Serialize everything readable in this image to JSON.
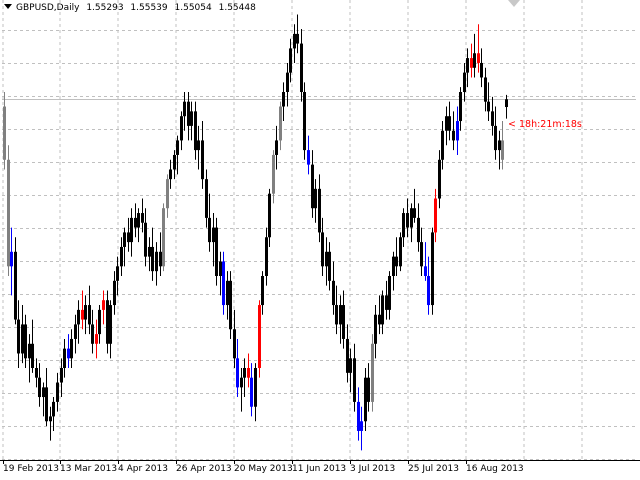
{
  "header": {
    "symbol_period": "GBPUSD,Daily",
    "open": "1.55293",
    "high": "1.55539",
    "low": "1.55054",
    "close": "1.55448"
  },
  "timer": {
    "text": "< 18h:21m:18s",
    "color": "#ff0000"
  },
  "colors": {
    "background": "#ffffff",
    "grid": "#c0c0c0",
    "bear_candle": "#000000",
    "bull_candle": "#000000",
    "neutral_candle": "#808080",
    "highlight_up": "#ff0000",
    "highlight_down": "#0000ff",
    "price_line": "#c0c0c0"
  },
  "x_axis": {
    "labels": [
      "19 Feb 2013",
      "13 Mar 2013",
      "4 Apr 2013",
      "26 Apr 2013",
      "20 May 2013",
      "11 Jun 2013",
      "3 Jul 2013",
      "25 Jul 2013",
      "16 Aug 2013"
    ]
  },
  "chart_data": {
    "type": "candlestick",
    "title": "GBPUSD,Daily",
    "current_close": 1.55448,
    "ylim": [
      1.48,
      1.575
    ],
    "candles": [
      {
        "o": 1.553,
        "h": 1.556,
        "l": 1.54,
        "c": 1.542,
        "k": "g"
      },
      {
        "o": 1.542,
        "h": 1.545,
        "l": 1.518,
        "c": 1.52,
        "k": "g"
      },
      {
        "o": 1.52,
        "h": 1.528,
        "l": 1.514,
        "c": 1.523,
        "k": "b"
      },
      {
        "o": 1.523,
        "h": 1.526,
        "l": 1.508,
        "c": 1.509,
        "k": "k"
      },
      {
        "o": 1.509,
        "h": 1.513,
        "l": 1.499,
        "c": 1.502,
        "k": "k"
      },
      {
        "o": 1.502,
        "h": 1.512,
        "l": 1.5,
        "c": 1.508,
        "k": "k"
      },
      {
        "o": 1.508,
        "h": 1.51,
        "l": 1.499,
        "c": 1.501,
        "k": "k"
      },
      {
        "o": 1.501,
        "h": 1.506,
        "l": 1.496,
        "c": 1.504,
        "k": "k"
      },
      {
        "o": 1.504,
        "h": 1.509,
        "l": 1.498,
        "c": 1.499,
        "k": "k"
      },
      {
        "o": 1.499,
        "h": 1.501,
        "l": 1.495,
        "c": 1.497,
        "k": "k"
      },
      {
        "o": 1.497,
        "h": 1.5,
        "l": 1.491,
        "c": 1.493,
        "k": "k"
      },
      {
        "o": 1.493,
        "h": 1.496,
        "l": 1.489,
        "c": 1.495,
        "k": "k"
      },
      {
        "o": 1.495,
        "h": 1.499,
        "l": 1.487,
        "c": 1.488,
        "k": "k"
      },
      {
        "o": 1.488,
        "h": 1.491,
        "l": 1.484,
        "c": 1.489,
        "k": "k"
      },
      {
        "o": 1.489,
        "h": 1.493,
        "l": 1.486,
        "c": 1.492,
        "k": "k"
      },
      {
        "o": 1.492,
        "h": 1.498,
        "l": 1.49,
        "c": 1.496,
        "k": "k"
      },
      {
        "o": 1.496,
        "h": 1.501,
        "l": 1.493,
        "c": 1.499,
        "k": "k"
      },
      {
        "o": 1.499,
        "h": 1.505,
        "l": 1.497,
        "c": 1.503,
        "k": "k"
      },
      {
        "o": 1.503,
        "h": 1.506,
        "l": 1.499,
        "c": 1.501,
        "k": "b"
      },
      {
        "o": 1.501,
        "h": 1.507,
        "l": 1.499,
        "c": 1.505,
        "k": "k"
      },
      {
        "o": 1.505,
        "h": 1.51,
        "l": 1.502,
        "c": 1.508,
        "k": "k"
      },
      {
        "o": 1.508,
        "h": 1.513,
        "l": 1.504,
        "c": 1.511,
        "k": "k"
      },
      {
        "o": 1.511,
        "h": 1.515,
        "l": 1.507,
        "c": 1.509,
        "k": "r"
      },
      {
        "o": 1.509,
        "h": 1.514,
        "l": 1.506,
        "c": 1.512,
        "k": "k"
      },
      {
        "o": 1.512,
        "h": 1.516,
        "l": 1.506,
        "c": 1.508,
        "k": "k"
      },
      {
        "o": 1.508,
        "h": 1.511,
        "l": 1.502,
        "c": 1.504,
        "k": "k"
      },
      {
        "o": 1.504,
        "h": 1.509,
        "l": 1.501,
        "c": 1.506,
        "k": "r"
      },
      {
        "o": 1.506,
        "h": 1.512,
        "l": 1.504,
        "c": 1.511,
        "k": "k"
      },
      {
        "o": 1.511,
        "h": 1.515,
        "l": 1.508,
        "c": 1.513,
        "k": "r"
      },
      {
        "o": 1.513,
        "h": 1.515,
        "l": 1.502,
        "c": 1.504,
        "k": "k"
      },
      {
        "o": 1.504,
        "h": 1.513,
        "l": 1.501,
        "c": 1.512,
        "k": "k"
      },
      {
        "o": 1.512,
        "h": 1.519,
        "l": 1.51,
        "c": 1.517,
        "k": "k"
      },
      {
        "o": 1.517,
        "h": 1.522,
        "l": 1.514,
        "c": 1.52,
        "k": "k"
      },
      {
        "o": 1.52,
        "h": 1.526,
        "l": 1.518,
        "c": 1.524,
        "k": "k"
      },
      {
        "o": 1.524,
        "h": 1.528,
        "l": 1.52,
        "c": 1.527,
        "k": "k"
      },
      {
        "o": 1.527,
        "h": 1.53,
        "l": 1.523,
        "c": 1.525,
        "k": "k"
      },
      {
        "o": 1.525,
        "h": 1.532,
        "l": 1.522,
        "c": 1.53,
        "k": "k"
      },
      {
        "o": 1.53,
        "h": 1.533,
        "l": 1.526,
        "c": 1.528,
        "k": "k"
      },
      {
        "o": 1.528,
        "h": 1.532,
        "l": 1.525,
        "c": 1.531,
        "k": "k"
      },
      {
        "o": 1.531,
        "h": 1.534,
        "l": 1.527,
        "c": 1.529,
        "k": "k"
      },
      {
        "o": 1.529,
        "h": 1.532,
        "l": 1.52,
        "c": 1.522,
        "k": "k"
      },
      {
        "o": 1.522,
        "h": 1.526,
        "l": 1.519,
        "c": 1.524,
        "k": "k"
      },
      {
        "o": 1.524,
        "h": 1.528,
        "l": 1.517,
        "c": 1.519,
        "k": "k"
      },
      {
        "o": 1.519,
        "h": 1.525,
        "l": 1.516,
        "c": 1.523,
        "k": "k"
      },
      {
        "o": 1.523,
        "h": 1.527,
        "l": 1.518,
        "c": 1.52,
        "k": "k"
      },
      {
        "o": 1.52,
        "h": 1.533,
        "l": 1.519,
        "c": 1.532,
        "k": "g"
      },
      {
        "o": 1.532,
        "h": 1.539,
        "l": 1.53,
        "c": 1.538,
        "k": "g"
      },
      {
        "o": 1.538,
        "h": 1.542,
        "l": 1.536,
        "c": 1.54,
        "k": "k"
      },
      {
        "o": 1.54,
        "h": 1.544,
        "l": 1.538,
        "c": 1.543,
        "k": "k"
      },
      {
        "o": 1.543,
        "h": 1.547,
        "l": 1.539,
        "c": 1.546,
        "k": "k"
      },
      {
        "o": 1.546,
        "h": 1.552,
        "l": 1.544,
        "c": 1.551,
        "k": "k"
      },
      {
        "o": 1.551,
        "h": 1.556,
        "l": 1.548,
        "c": 1.554,
        "k": "k"
      },
      {
        "o": 1.554,
        "h": 1.556,
        "l": 1.546,
        "c": 1.549,
        "k": "k"
      },
      {
        "o": 1.549,
        "h": 1.554,
        "l": 1.546,
        "c": 1.552,
        "k": "k"
      },
      {
        "o": 1.552,
        "h": 1.554,
        "l": 1.542,
        "c": 1.544,
        "k": "k"
      },
      {
        "o": 1.544,
        "h": 1.549,
        "l": 1.54,
        "c": 1.546,
        "k": "k"
      },
      {
        "o": 1.546,
        "h": 1.55,
        "l": 1.536,
        "c": 1.538,
        "k": "k"
      },
      {
        "o": 1.538,
        "h": 1.54,
        "l": 1.528,
        "c": 1.53,
        "k": "k"
      },
      {
        "o": 1.53,
        "h": 1.535,
        "l": 1.523,
        "c": 1.525,
        "k": "k"
      },
      {
        "o": 1.525,
        "h": 1.531,
        "l": 1.52,
        "c": 1.528,
        "k": "k"
      },
      {
        "o": 1.528,
        "h": 1.53,
        "l": 1.516,
        "c": 1.518,
        "k": "k"
      },
      {
        "o": 1.518,
        "h": 1.523,
        "l": 1.514,
        "c": 1.521,
        "k": "k"
      },
      {
        "o": 1.521,
        "h": 1.523,
        "l": 1.51,
        "c": 1.512,
        "k": "b"
      },
      {
        "o": 1.512,
        "h": 1.519,
        "l": 1.509,
        "c": 1.517,
        "k": "k"
      },
      {
        "o": 1.517,
        "h": 1.519,
        "l": 1.505,
        "c": 1.507,
        "k": "k"
      },
      {
        "o": 1.507,
        "h": 1.511,
        "l": 1.499,
        "c": 1.501,
        "k": "k"
      },
      {
        "o": 1.501,
        "h": 1.505,
        "l": 1.493,
        "c": 1.495,
        "k": "b"
      },
      {
        "o": 1.495,
        "h": 1.499,
        "l": 1.49,
        "c": 1.497,
        "k": "k"
      },
      {
        "o": 1.497,
        "h": 1.501,
        "l": 1.493,
        "c": 1.499,
        "k": "k"
      },
      {
        "o": 1.499,
        "h": 1.502,
        "l": 1.495,
        "c": 1.497,
        "k": "r"
      },
      {
        "o": 1.497,
        "h": 1.5,
        "l": 1.489,
        "c": 1.491,
        "k": "b"
      },
      {
        "o": 1.491,
        "h": 1.5,
        "l": 1.488,
        "c": 1.499,
        "k": "k"
      },
      {
        "o": 1.499,
        "h": 1.513,
        "l": 1.497,
        "c": 1.512,
        "k": "r"
      },
      {
        "o": 1.512,
        "h": 1.519,
        "l": 1.51,
        "c": 1.518,
        "k": "k"
      },
      {
        "o": 1.518,
        "h": 1.528,
        "l": 1.516,
        "c": 1.526,
        "k": "k"
      },
      {
        "o": 1.526,
        "h": 1.536,
        "l": 1.524,
        "c": 1.535,
        "k": "k"
      },
      {
        "o": 1.535,
        "h": 1.544,
        "l": 1.533,
        "c": 1.543,
        "k": "g"
      },
      {
        "o": 1.543,
        "h": 1.549,
        "l": 1.54,
        "c": 1.546,
        "k": "k"
      },
      {
        "o": 1.546,
        "h": 1.554,
        "l": 1.544,
        "c": 1.553,
        "k": "g"
      },
      {
        "o": 1.553,
        "h": 1.558,
        "l": 1.55,
        "c": 1.556,
        "k": "k"
      },
      {
        "o": 1.556,
        "h": 1.562,
        "l": 1.553,
        "c": 1.56,
        "k": "k"
      },
      {
        "o": 1.56,
        "h": 1.567,
        "l": 1.558,
        "c": 1.565,
        "k": "k"
      },
      {
        "o": 1.565,
        "h": 1.57,
        "l": 1.562,
        "c": 1.568,
        "k": "k"
      },
      {
        "o": 1.568,
        "h": 1.572,
        "l": 1.564,
        "c": 1.566,
        "k": "k"
      },
      {
        "o": 1.566,
        "h": 1.569,
        "l": 1.554,
        "c": 1.556,
        "k": "k"
      },
      {
        "o": 1.556,
        "h": 1.558,
        "l": 1.542,
        "c": 1.544,
        "k": "k"
      },
      {
        "o": 1.544,
        "h": 1.547,
        "l": 1.539,
        "c": 1.541,
        "k": "b"
      },
      {
        "o": 1.541,
        "h": 1.544,
        "l": 1.53,
        "c": 1.532,
        "k": "k"
      },
      {
        "o": 1.532,
        "h": 1.538,
        "l": 1.529,
        "c": 1.536,
        "k": "k"
      },
      {
        "o": 1.536,
        "h": 1.539,
        "l": 1.525,
        "c": 1.527,
        "k": "k"
      },
      {
        "o": 1.527,
        "h": 1.53,
        "l": 1.518,
        "c": 1.52,
        "k": "k"
      },
      {
        "o": 1.52,
        "h": 1.526,
        "l": 1.516,
        "c": 1.523,
        "k": "k"
      },
      {
        "o": 1.523,
        "h": 1.525,
        "l": 1.515,
        "c": 1.517,
        "k": "k"
      },
      {
        "o": 1.517,
        "h": 1.521,
        "l": 1.51,
        "c": 1.512,
        "k": "k"
      },
      {
        "o": 1.512,
        "h": 1.516,
        "l": 1.506,
        "c": 1.508,
        "k": "k"
      },
      {
        "o": 1.508,
        "h": 1.514,
        "l": 1.504,
        "c": 1.512,
        "k": "k"
      },
      {
        "o": 1.512,
        "h": 1.515,
        "l": 1.503,
        "c": 1.505,
        "k": "k"
      },
      {
        "o": 1.505,
        "h": 1.508,
        "l": 1.496,
        "c": 1.498,
        "k": "k"
      },
      {
        "o": 1.498,
        "h": 1.503,
        "l": 1.494,
        "c": 1.501,
        "k": "k"
      },
      {
        "o": 1.501,
        "h": 1.504,
        "l": 1.49,
        "c": 1.492,
        "k": "k"
      },
      {
        "o": 1.492,
        "h": 1.495,
        "l": 1.484,
        "c": 1.486,
        "k": "b"
      },
      {
        "o": 1.486,
        "h": 1.491,
        "l": 1.482,
        "c": 1.488,
        "k": "b"
      },
      {
        "o": 1.488,
        "h": 1.499,
        "l": 1.486,
        "c": 1.497,
        "k": "k"
      },
      {
        "o": 1.497,
        "h": 1.5,
        "l": 1.49,
        "c": 1.492,
        "k": "k"
      },
      {
        "o": 1.492,
        "h": 1.506,
        "l": 1.49,
        "c": 1.504,
        "k": "g"
      },
      {
        "o": 1.504,
        "h": 1.512,
        "l": 1.501,
        "c": 1.51,
        "k": "k"
      },
      {
        "o": 1.51,
        "h": 1.514,
        "l": 1.506,
        "c": 1.508,
        "k": "k"
      },
      {
        "o": 1.508,
        "h": 1.515,
        "l": 1.506,
        "c": 1.514,
        "k": "k"
      },
      {
        "o": 1.514,
        "h": 1.517,
        "l": 1.509,
        "c": 1.511,
        "k": "k"
      },
      {
        "o": 1.511,
        "h": 1.519,
        "l": 1.509,
        "c": 1.518,
        "k": "k"
      },
      {
        "o": 1.518,
        "h": 1.523,
        "l": 1.515,
        "c": 1.522,
        "k": "k"
      },
      {
        "o": 1.522,
        "h": 1.526,
        "l": 1.518,
        "c": 1.52,
        "k": "k"
      },
      {
        "o": 1.52,
        "h": 1.527,
        "l": 1.519,
        "c": 1.526,
        "k": "k"
      },
      {
        "o": 1.526,
        "h": 1.532,
        "l": 1.524,
        "c": 1.531,
        "k": "k"
      },
      {
        "o": 1.531,
        "h": 1.534,
        "l": 1.526,
        "c": 1.528,
        "k": "k"
      },
      {
        "o": 1.528,
        "h": 1.533,
        "l": 1.525,
        "c": 1.532,
        "k": "k"
      },
      {
        "o": 1.532,
        "h": 1.536,
        "l": 1.529,
        "c": 1.53,
        "k": "k"
      },
      {
        "o": 1.53,
        "h": 1.533,
        "l": 1.523,
        "c": 1.525,
        "k": "k"
      },
      {
        "o": 1.525,
        "h": 1.528,
        "l": 1.518,
        "c": 1.52,
        "k": "k"
      },
      {
        "o": 1.52,
        "h": 1.525,
        "l": 1.517,
        "c": 1.518,
        "k": "b"
      },
      {
        "o": 1.518,
        "h": 1.522,
        "l": 1.51,
        "c": 1.512,
        "k": "b"
      },
      {
        "o": 1.512,
        "h": 1.528,
        "l": 1.51,
        "c": 1.527,
        "k": "k"
      },
      {
        "o": 1.527,
        "h": 1.536,
        "l": 1.525,
        "c": 1.534,
        "k": "r"
      },
      {
        "o": 1.534,
        "h": 1.544,
        "l": 1.532,
        "c": 1.542,
        "k": "k"
      },
      {
        "o": 1.542,
        "h": 1.55,
        "l": 1.54,
        "c": 1.548,
        "k": "k"
      },
      {
        "o": 1.548,
        "h": 1.553,
        "l": 1.545,
        "c": 1.551,
        "k": "k"
      },
      {
        "o": 1.551,
        "h": 1.554,
        "l": 1.546,
        "c": 1.548,
        "k": "k"
      },
      {
        "o": 1.548,
        "h": 1.552,
        "l": 1.544,
        "c": 1.546,
        "k": "k"
      },
      {
        "o": 1.546,
        "h": 1.553,
        "l": 1.543,
        "c": 1.55,
        "k": "b"
      },
      {
        "o": 1.55,
        "h": 1.557,
        "l": 1.548,
        "c": 1.556,
        "k": "k"
      },
      {
        "o": 1.556,
        "h": 1.562,
        "l": 1.554,
        "c": 1.56,
        "k": "k"
      },
      {
        "o": 1.56,
        "h": 1.565,
        "l": 1.557,
        "c": 1.563,
        "k": "k"
      },
      {
        "o": 1.563,
        "h": 1.566,
        "l": 1.559,
        "c": 1.561,
        "k": "r"
      },
      {
        "o": 1.561,
        "h": 1.568,
        "l": 1.559,
        "c": 1.564,
        "k": "k"
      },
      {
        "o": 1.564,
        "h": 1.57,
        "l": 1.56,
        "c": 1.562,
        "k": "r"
      },
      {
        "o": 1.562,
        "h": 1.565,
        "l": 1.557,
        "c": 1.559,
        "k": "k"
      },
      {
        "o": 1.559,
        "h": 1.561,
        "l": 1.552,
        "c": 1.554,
        "k": "k"
      },
      {
        "o": 1.554,
        "h": 1.558,
        "l": 1.55,
        "c": 1.552,
        "k": "k"
      },
      {
        "o": 1.552,
        "h": 1.555,
        "l": 1.547,
        "c": 1.549,
        "k": "k"
      },
      {
        "o": 1.549,
        "h": 1.553,
        "l": 1.542,
        "c": 1.544,
        "k": "k"
      },
      {
        "o": 1.544,
        "h": 1.548,
        "l": 1.54,
        "c": 1.546,
        "k": "k"
      },
      {
        "o": 1.546,
        "h": 1.55,
        "l": 1.54,
        "c": 1.542,
        "k": "g"
      },
      {
        "o": 1.5529,
        "h": 1.5554,
        "l": 1.5505,
        "c": 1.5545,
        "k": "k"
      }
    ]
  }
}
